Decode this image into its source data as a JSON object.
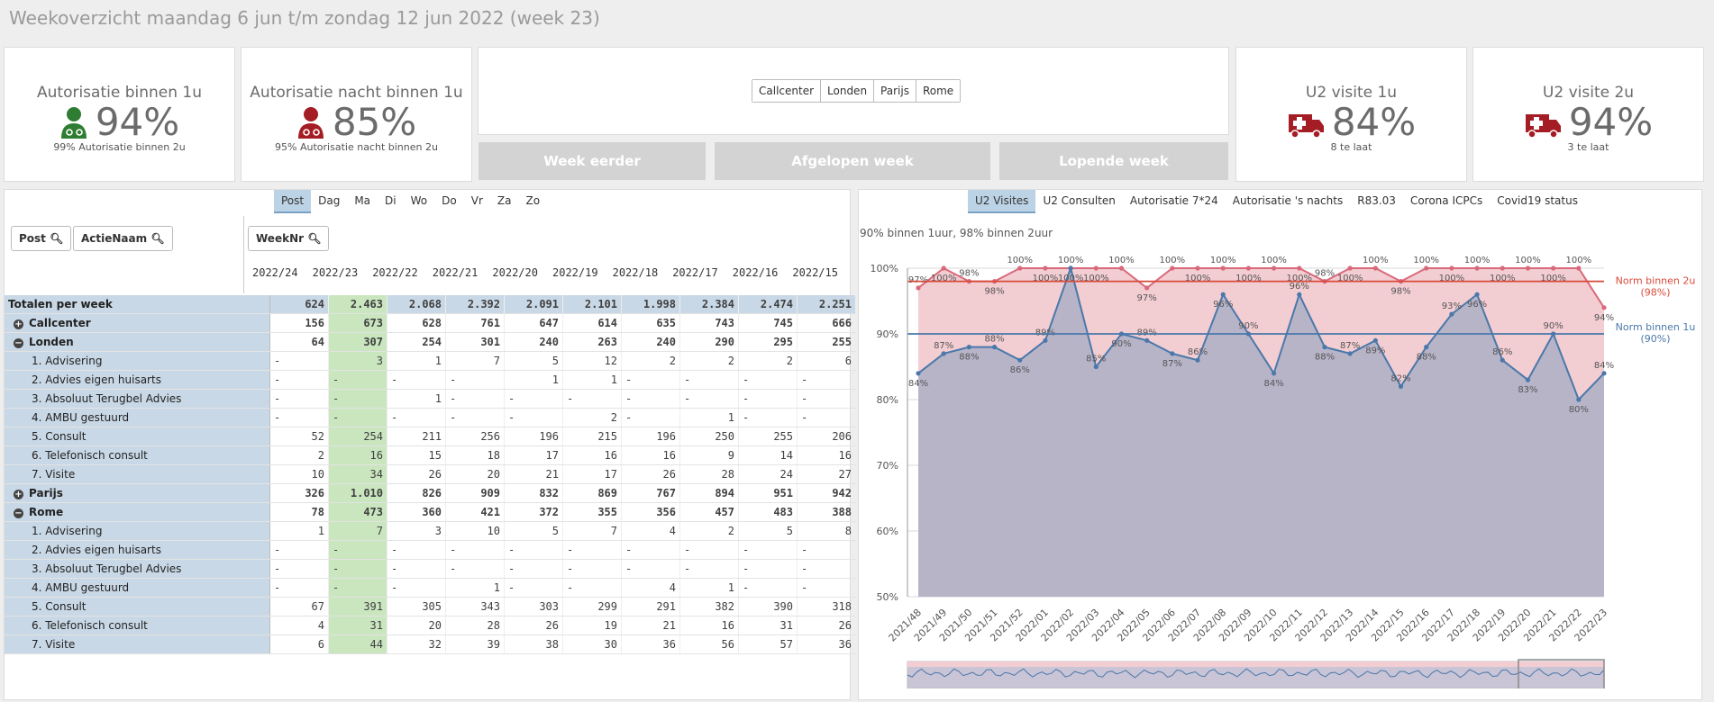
{
  "page_title": "Weekoverzicht maandag 6 jun t/m zondag 12 jun 2022 (week 23)",
  "kpis": [
    {
      "title": "Autorisatie binnen 1u",
      "value": "94%",
      "sub": "99% Autorisatie binnen 2u",
      "icon": "doctor-icon",
      "color": "#2e7d32"
    },
    {
      "title": "Autorisatie nacht binnen 1u",
      "value": "85%",
      "sub": "95% Autorisatie nacht binnen 2u",
      "icon": "doctor-icon",
      "color": "#a51d24"
    },
    {
      "title": "U2 visite 1u",
      "value": "84%",
      "sub": "8 te laat",
      "icon": "ambulance-icon",
      "color": "#a51d24"
    },
    {
      "title": "U2 visite 2u",
      "value": "94%",
      "sub": "3 te laat",
      "icon": "ambulance-icon",
      "color": "#a51d24"
    }
  ],
  "locations": [
    "Callcenter",
    "Londen",
    "Parijs",
    "Rome"
  ],
  "buttons": {
    "week_eerder": "Week eerder",
    "afgelopen_week": "Afgelopen week",
    "lopende_week": "Lopende week"
  },
  "day_tabs": [
    "Post",
    "Dag",
    "Ma",
    "Di",
    "Wo",
    "Do",
    "Vr",
    "Za",
    "Zo"
  ],
  "filters": {
    "post": "Post",
    "actienaam": "ActieNaam",
    "weeknr": "WeekNr"
  },
  "weeks": [
    "2022/24",
    "2022/23",
    "2022/22",
    "2022/21",
    "2022/20",
    "2022/19",
    "2022/18",
    "2022/17",
    "2022/16",
    "2022/15"
  ],
  "rows": [
    {
      "label": "Totalen per week",
      "type": "total",
      "values": [
        "624",
        "2.463",
        "2.068",
        "2.392",
        "2.091",
        "2.101",
        "1.998",
        "2.384",
        "2.474",
        "2.251"
      ]
    },
    {
      "label": "Callcenter",
      "type": "group",
      "exp": "+",
      "values": [
        "156",
        "673",
        "628",
        "761",
        "647",
        "614",
        "635",
        "743",
        "745",
        "666"
      ]
    },
    {
      "label": "Londen",
      "type": "group",
      "exp": "−",
      "values": [
        "64",
        "307",
        "254",
        "301",
        "240",
        "263",
        "240",
        "290",
        "295",
        "255"
      ]
    },
    {
      "label": "1. Advisering",
      "type": "sub",
      "values": [
        "-",
        "3",
        "1",
        "7",
        "5",
        "12",
        "2",
        "2",
        "2",
        "6"
      ]
    },
    {
      "label": "2. Advies eigen huisarts",
      "type": "sub",
      "values": [
        "-",
        "-",
        "-",
        "-",
        "1",
        "1",
        "-",
        "-",
        "-",
        "-"
      ]
    },
    {
      "label": "3. Absoluut Terugbel Advies",
      "type": "sub",
      "values": [
        "-",
        "-",
        "1",
        "-",
        "-",
        "-",
        "-",
        "-",
        "-",
        "-"
      ]
    },
    {
      "label": "4. AMBU gestuurd",
      "type": "sub",
      "values": [
        "-",
        "-",
        "-",
        "-",
        "-",
        "2",
        "-",
        "1",
        "-",
        "-"
      ]
    },
    {
      "label": "5. Consult",
      "type": "sub",
      "values": [
        "52",
        "254",
        "211",
        "256",
        "196",
        "215",
        "196",
        "250",
        "255",
        "206"
      ]
    },
    {
      "label": "6. Telefonisch consult",
      "type": "sub",
      "values": [
        "2",
        "16",
        "15",
        "18",
        "17",
        "16",
        "16",
        "9",
        "14",
        "16"
      ]
    },
    {
      "label": "7. Visite",
      "type": "sub",
      "values": [
        "10",
        "34",
        "26",
        "20",
        "21",
        "17",
        "26",
        "28",
        "24",
        "27"
      ]
    },
    {
      "label": "Parijs",
      "type": "group",
      "exp": "+",
      "values": [
        "326",
        "1.010",
        "826",
        "909",
        "832",
        "869",
        "767",
        "894",
        "951",
        "942"
      ]
    },
    {
      "label": "Rome",
      "type": "group",
      "exp": "−",
      "values": [
        "78",
        "473",
        "360",
        "421",
        "372",
        "355",
        "356",
        "457",
        "483",
        "388"
      ]
    },
    {
      "label": "1. Advisering",
      "type": "sub",
      "values": [
        "1",
        "7",
        "3",
        "10",
        "5",
        "7",
        "4",
        "2",
        "5",
        "8"
      ]
    },
    {
      "label": "2. Advies eigen huisarts",
      "type": "sub",
      "values": [
        "-",
        "-",
        "-",
        "-",
        "-",
        "-",
        "-",
        "-",
        "-",
        "-"
      ]
    },
    {
      "label": "3. Absoluut Terugbel Advies",
      "type": "sub",
      "values": [
        "-",
        "-",
        "-",
        "-",
        "-",
        "-",
        "-",
        "-",
        "-",
        "-"
      ]
    },
    {
      "label": "4. AMBU gestuurd",
      "type": "sub",
      "values": [
        "-",
        "-",
        "-",
        "1",
        "-",
        "-",
        "4",
        "1",
        "-",
        "-"
      ]
    },
    {
      "label": "5. Consult",
      "type": "sub",
      "values": [
        "67",
        "391",
        "305",
        "343",
        "303",
        "299",
        "291",
        "382",
        "390",
        "318"
      ]
    },
    {
      "label": "6. Telefonisch consult",
      "type": "sub",
      "values": [
        "4",
        "31",
        "20",
        "28",
        "26",
        "19",
        "21",
        "16",
        "31",
        "26"
      ]
    },
    {
      "label": "7. Visite",
      "type": "sub",
      "values": [
        "6",
        "44",
        "32",
        "39",
        "38",
        "30",
        "36",
        "56",
        "57",
        "36"
      ]
    }
  ],
  "chart_tabs": [
    "U2 Visites",
    "U2 Consulten",
    "Autorisatie 7*24",
    "Autorisatie 's nachts",
    "R83.03",
    "Corona ICPCs",
    "Covid19 status"
  ],
  "chart_data": {
    "type": "area",
    "subtitle": "90% binnen 1uur, 98% binnen 2uur",
    "ylim": [
      50,
      100
    ],
    "yticks": [
      "50%",
      "60%",
      "70%",
      "80%",
      "90%",
      "100%"
    ],
    "categories": [
      "2021/48",
      "2021/49",
      "2021/50",
      "2021/51",
      "2021/52",
      "2022/01",
      "2022/02",
      "2022/03",
      "2022/04",
      "2022/05",
      "2022/06",
      "2022/07",
      "2022/08",
      "2022/09",
      "2022/10",
      "2022/11",
      "2022/12",
      "2022/13",
      "2022/14",
      "2022/15",
      "2022/16",
      "2022/17",
      "2022/18",
      "2022/19",
      "2022/20",
      "2022/21",
      "2022/22",
      "2022/23"
    ],
    "series": [
      {
        "name": "binnen 2u",
        "color": "#d9697a",
        "fill": "#f2cdd2",
        "values": [
          97,
          100,
          98,
          98,
          100,
          100,
          100,
          100,
          100,
          97,
          100,
          100,
          100,
          100,
          100,
          100,
          98,
          100,
          100,
          98,
          100,
          100,
          100,
          100,
          100,
          100,
          100,
          94
        ]
      },
      {
        "name": "binnen 1u",
        "color": "#4a78aa",
        "fill": "#b8b4c8",
        "values": [
          84,
          87,
          88,
          88,
          86,
          89,
          100,
          85,
          90,
          89,
          87,
          86,
          96,
          90,
          84,
          96,
          88,
          87,
          89,
          82,
          88,
          93,
          96,
          86,
          83,
          90,
          80,
          84
        ]
      }
    ],
    "norms": [
      {
        "label": "Norm binnen 2u",
        "value_label": "(98%)",
        "value": 98,
        "color": "#d84a3a"
      },
      {
        "label": "Norm binnen 1u",
        "value_label": "(90%)",
        "value": 90,
        "color": "#4a78aa"
      }
    ]
  }
}
